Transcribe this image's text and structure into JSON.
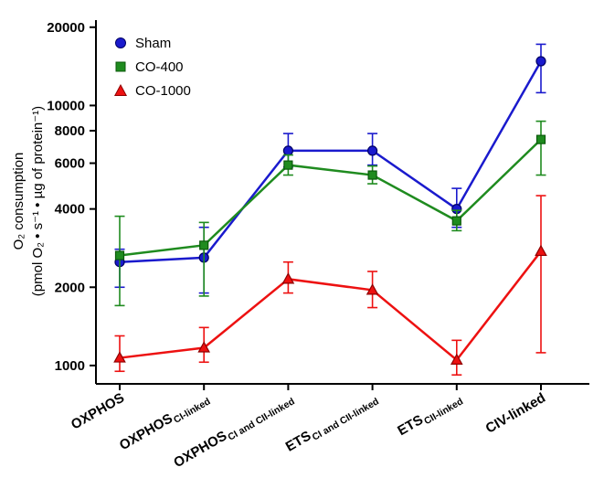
{
  "chart_data": {
    "type": "line",
    "title": "",
    "ylabel_line1": "O₂ consumption",
    "ylabel_line2": "(pmol O₂ • s⁻¹ • µg of protein⁻¹)",
    "y_scale": "log",
    "ylim": [
      850,
      21300
    ],
    "y_ticks": [
      1000,
      2000,
      4000,
      6000,
      8000,
      10000,
      20000
    ],
    "grid": false,
    "legend_position": "top-left",
    "categories": [
      {
        "main": "OXPHOS",
        "sub": ""
      },
      {
        "main": "OXPHOS",
        "sub": "CI-linked"
      },
      {
        "main": "OXPHOS",
        "sub": "CI and CII-linked"
      },
      {
        "main": "ETS",
        "sub": "CI and CII-linked"
      },
      {
        "main": "ETS",
        "sub": "CII-linked"
      },
      {
        "main": "CIV-linked",
        "sub": ""
      }
    ],
    "series": [
      {
        "name": "Sham",
        "marker": "circle",
        "color": "#1a1acd",
        "edge": "#000066",
        "values": [
          2500,
          2600,
          6700,
          6700,
          4000,
          14800
        ],
        "err_low": [
          2000,
          1900,
          5800,
          5900,
          3400,
          11200
        ],
        "err_high": [
          2800,
          3400,
          7800,
          7800,
          4800,
          17200
        ]
      },
      {
        "name": "CO-400",
        "marker": "square",
        "color": "#1f8b1f",
        "edge": "#0b5a0b",
        "values": [
          2650,
          2900,
          5900,
          5400,
          3600,
          7400
        ],
        "err_low": [
          1700,
          1850,
          5400,
          5000,
          3300,
          5400
        ],
        "err_high": [
          3750,
          3550,
          6450,
          5850,
          3950,
          8700
        ]
      },
      {
        "name": "CO-1000",
        "marker": "triangle",
        "color": "#ed1111",
        "edge": "#8f0000",
        "values": [
          1070,
          1170,
          2150,
          1950,
          1050,
          2750
        ],
        "err_low": [
          950,
          1030,
          1900,
          1670,
          920,
          1120
        ],
        "err_high": [
          1300,
          1400,
          2500,
          2300,
          1250,
          4500
        ]
      }
    ]
  }
}
